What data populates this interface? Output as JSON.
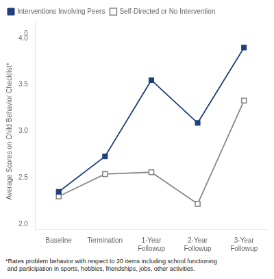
{
  "chart_data": {
    "type": "line",
    "categories": [
      "Baseline",
      "Termination",
      "1-Year\nFollowup",
      "2-Year\nFollowup",
      "3-Year\nFollowup"
    ],
    "series": [
      {
        "name": "Interventions Involving Peers",
        "color": "#1e3f7a",
        "marker": "square",
        "values": [
          2.35,
          2.73,
          3.55,
          3.09,
          3.9
        ]
      },
      {
        "name": "Self-Directed or No Intervention",
        "color": "#888888",
        "marker": "square",
        "values": [
          2.3,
          2.54,
          2.56,
          2.22,
          3.33
        ]
      }
    ],
    "ylabel": "Average Scores on Child Behavior Checklist*",
    "ylim": [
      1.95,
      4.05
    ],
    "yticks": [
      {
        "value": 2.0,
        "label": "2.0"
      },
      2.5,
      {
        "value": 3.0,
        "label": "3.0"
      },
      3.5,
      {
        "value": 4.0,
        "label": "4.0"
      }
    ],
    "y2lim": [
      0,
      1
    ],
    "y2ticks": [
      0
    ],
    "grid": false,
    "legend": "upper left",
    "annotations": [
      "*Rates problem behavior with respect to 20 items including school functioning\n and participation in sports, hobbies, friendships, jobs, other activities."
    ]
  }
}
